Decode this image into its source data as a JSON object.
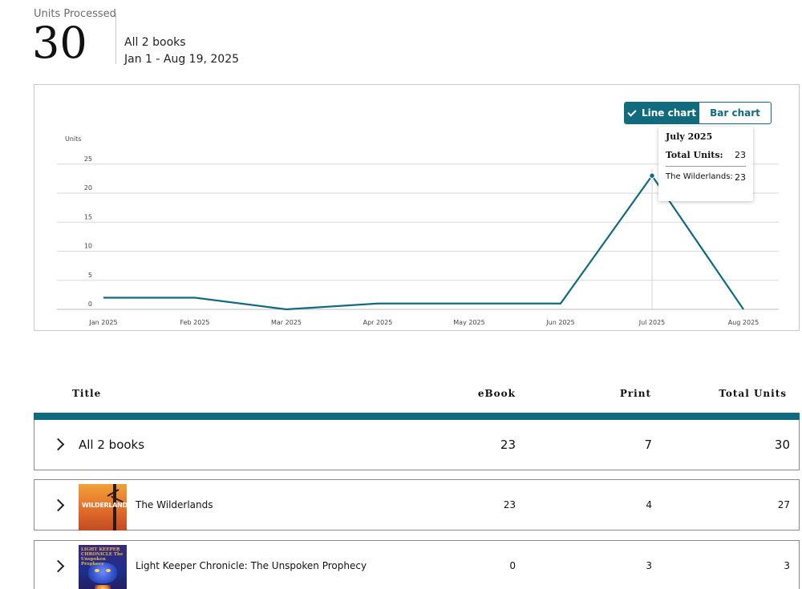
{
  "summary": {
    "label": "Units Processed",
    "value": "30",
    "books": "All 2 books",
    "date_range": "Jan 1 - Aug 19, 2025"
  },
  "chart_toggle": {
    "line_label": "Line chart",
    "bar_label": "Bar chart",
    "active": "line"
  },
  "tooltip": {
    "title": "July 2025",
    "total_label": "Total Units:",
    "total_value": "23",
    "book_label": "The Wilderlands:",
    "book_value": "23"
  },
  "colors": {
    "accent": "#116b7f",
    "grid": "#d9d9d9"
  },
  "chart_data": {
    "type": "line",
    "ylabel": "Units",
    "categories": [
      "Jan 2025",
      "Feb 2025",
      "Mar 2025",
      "Apr 2025",
      "May 2025",
      "Jun 2025",
      "Jul 2025",
      "Aug 2025"
    ],
    "y_ticks": [
      0,
      5,
      10,
      15,
      20,
      25
    ],
    "ylim": [
      0,
      25
    ],
    "grid": true,
    "series": [
      {
        "values": [
          2,
          2,
          0,
          1,
          1,
          1,
          23,
          0
        ]
      }
    ],
    "highlighted_category": "Jul 2025"
  },
  "table": {
    "headers": {
      "title": "Title",
      "ebook": "eBook",
      "print": "Print",
      "total": "Total Units"
    },
    "all_row": {
      "title": "All 2 books",
      "ebook": "23",
      "print": "7",
      "total": "30"
    },
    "rows": [
      {
        "title": "The Wilderlands",
        "cover_text": "WILDERLANDS",
        "ebook": "23",
        "print": "4",
        "total": "27"
      },
      {
        "title": "Light Keeper Chronicle: The Unspoken Prophecy",
        "cover_text": "LIGHT KEEPER CHRONICLE The Unspoken Prophecy",
        "ebook": "0",
        "print": "3",
        "total": "3"
      }
    ]
  }
}
